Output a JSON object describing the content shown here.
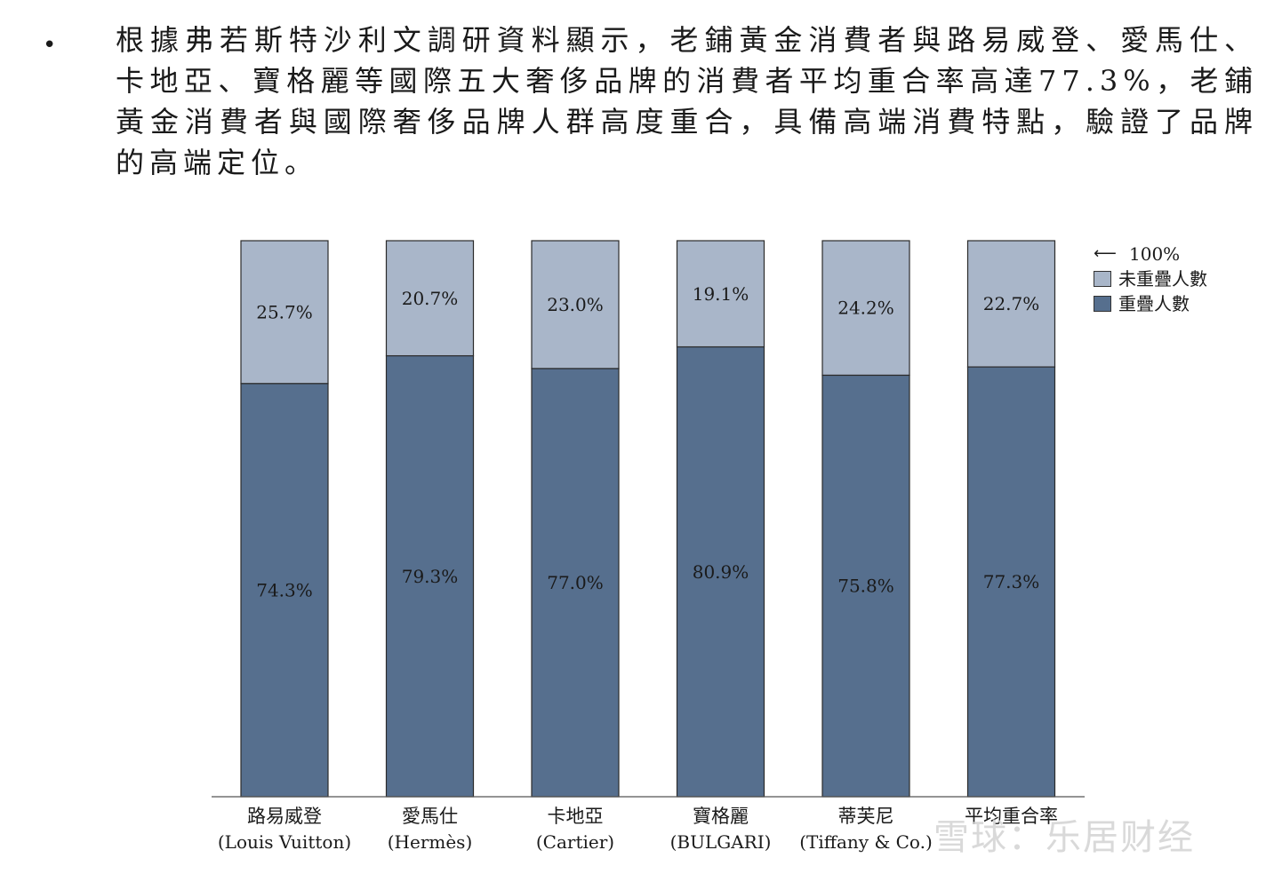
{
  "paragraph": {
    "bullet": "•",
    "text": "根據弗若斯特沙利文調研資料顯示，老鋪黃金消費者與路易威登、愛馬仕、卡地亞、寶格麗等國際五大奢侈品牌的消費者平均重合率高達77.3%，老鋪黃金消費者與國際奢侈品牌人群高度重合，具備高端消費特點，驗證了品牌的高端定位。"
  },
  "legend": {
    "total_label": "100%",
    "non_overlap_label": "未重疊人數",
    "overlap_label": "重疊人數"
  },
  "colors": {
    "overlap": "#566f8e",
    "non_overlap": "#a9b6c9",
    "bar_stroke": "#2b2b2b"
  },
  "chart_data": {
    "type": "bar",
    "stacked": true,
    "categories": [
      [
        "路易威登",
        "(Louis Vuitton)"
      ],
      [
        "愛馬仕",
        "(Hermès)"
      ],
      [
        "卡地亞",
        "(Cartier)"
      ],
      [
        "寶格麗",
        "(BULGARI)"
      ],
      [
        "蒂芙尼",
        "(Tiffany & Co.)"
      ],
      [
        "平均重合率",
        ""
      ]
    ],
    "series": [
      {
        "name": "重疊人數",
        "values": [
          74.3,
          79.3,
          77.0,
          80.9,
          75.8,
          77.3
        ],
        "labels": [
          "74.3%",
          "79.3%",
          "77.0%",
          "80.9%",
          "75.8%",
          "77.3%"
        ]
      },
      {
        "name": "未重疊人數",
        "values": [
          25.7,
          20.7,
          23.0,
          19.1,
          24.2,
          22.7
        ],
        "labels": [
          "25.7%",
          "20.7%",
          "23.0%",
          "19.1%",
          "24.2%",
          "22.7%"
        ]
      }
    ],
    "ylim": [
      0,
      100
    ],
    "grid": false,
    "legend_position": "top-right"
  },
  "watermark": "雪球：乐居财经"
}
